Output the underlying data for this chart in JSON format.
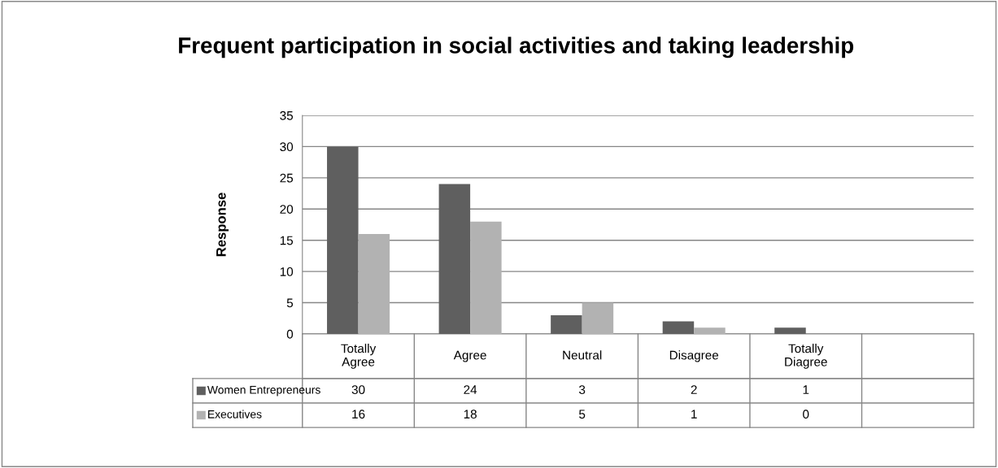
{
  "chart_data": {
    "type": "bar",
    "title": "Frequent participation in social activities and taking leadership",
    "ylabel": "Response",
    "categories": [
      "Totally\nAgree",
      "Agree",
      "Neutral",
      "Disagree",
      "Totally\nDiagree",
      null
    ],
    "series": [
      {
        "name": "Women Entrepreneurs",
        "color": "#5f5f5f",
        "values": [
          30,
          24,
          3,
          2,
          1,
          null
        ]
      },
      {
        "name": "Executives",
        "color": "#b2b2b2",
        "values": [
          16,
          18,
          5,
          1,
          0,
          null
        ]
      }
    ],
    "ylim": [
      0,
      35
    ],
    "yticks": [
      0,
      5,
      10,
      15,
      20,
      25,
      30,
      35
    ],
    "grid": "y",
    "data_labels": true,
    "legend": "bottom left"
  }
}
